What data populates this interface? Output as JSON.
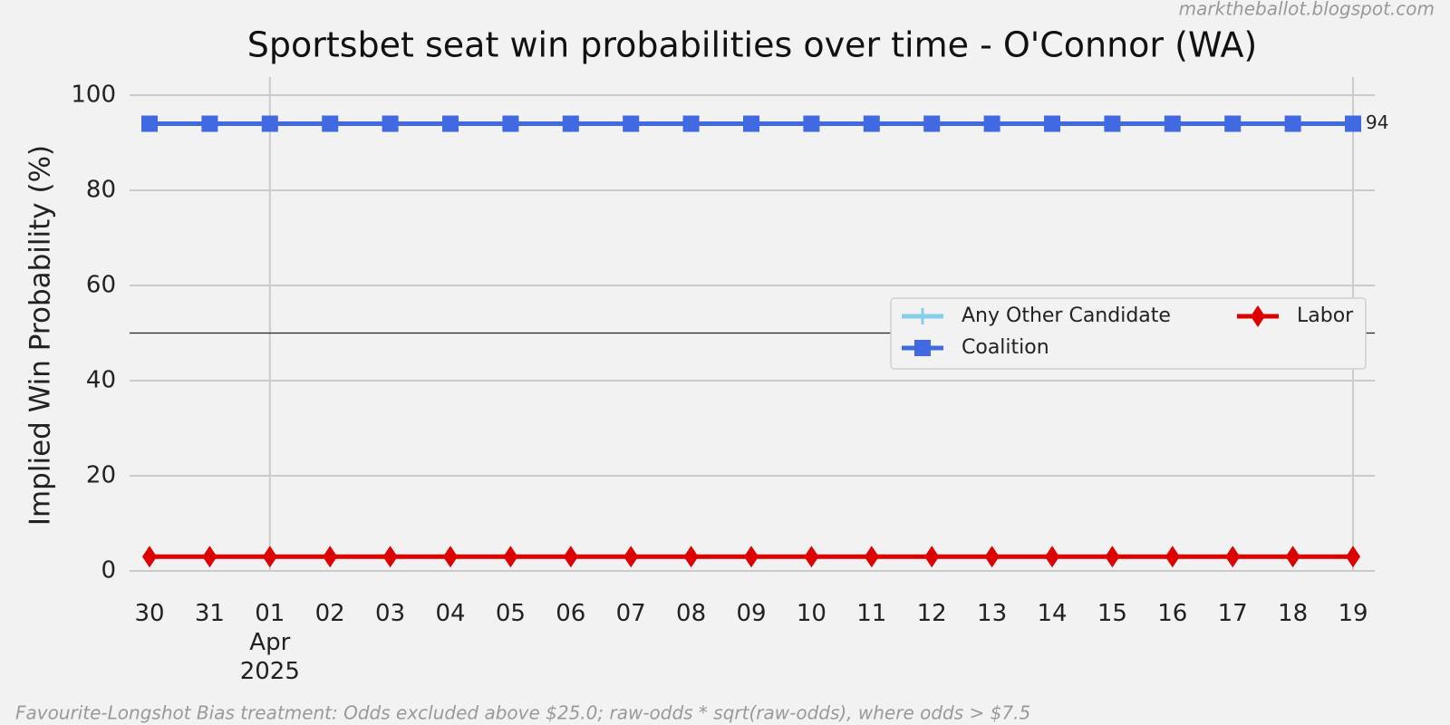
{
  "chart_data": {
    "type": "line",
    "title": "Sportsbet seat win probabilities over time - O'Connor (WA)",
    "ylabel": "Implied Win Probability (%)",
    "watermark": "marktheballot.blogspot.com",
    "footnote": "Favourite-Longshot Bias treatment: Odds excluded above $25.0; raw-odds * sqrt(raw-odds), where odds > $7.5",
    "categories": [
      "30",
      "31",
      "01\nApr\n2025",
      "02",
      "03",
      "04",
      "05",
      "06",
      "07",
      "08",
      "09",
      "10",
      "11",
      "12",
      "13",
      "14",
      "15",
      "16",
      "17",
      "18",
      "19"
    ],
    "series": [
      {
        "name": "Any Other Candidate",
        "color": "#87ceeb",
        "marker": "plus",
        "values": [
          null,
          null,
          null,
          null,
          null,
          null,
          null,
          null,
          null,
          null,
          null,
          null,
          null,
          null,
          null,
          null,
          null,
          null,
          null,
          null,
          null
        ]
      },
      {
        "name": "Coalition",
        "color": "#4169e1",
        "marker": "square",
        "end_label": true,
        "values": [
          94,
          94,
          94,
          94,
          94,
          94,
          94,
          94,
          94,
          94,
          94,
          94,
          94,
          94,
          94,
          94,
          94,
          94,
          94,
          94,
          94
        ]
      },
      {
        "name": "Labor",
        "color": "#dd0000",
        "marker": "diamond",
        "values": [
          3,
          3,
          3,
          3,
          3,
          3,
          3,
          3,
          3,
          3,
          3,
          3,
          3,
          3,
          3,
          3,
          3,
          3,
          3,
          3,
          3
        ]
      }
    ],
    "hline": 50,
    "ylim": [
      0,
      104
    ],
    "yticks": [
      0,
      20,
      40,
      60,
      80,
      100
    ],
    "grid": true,
    "legend": "center right",
    "legend_columns": 2
  }
}
